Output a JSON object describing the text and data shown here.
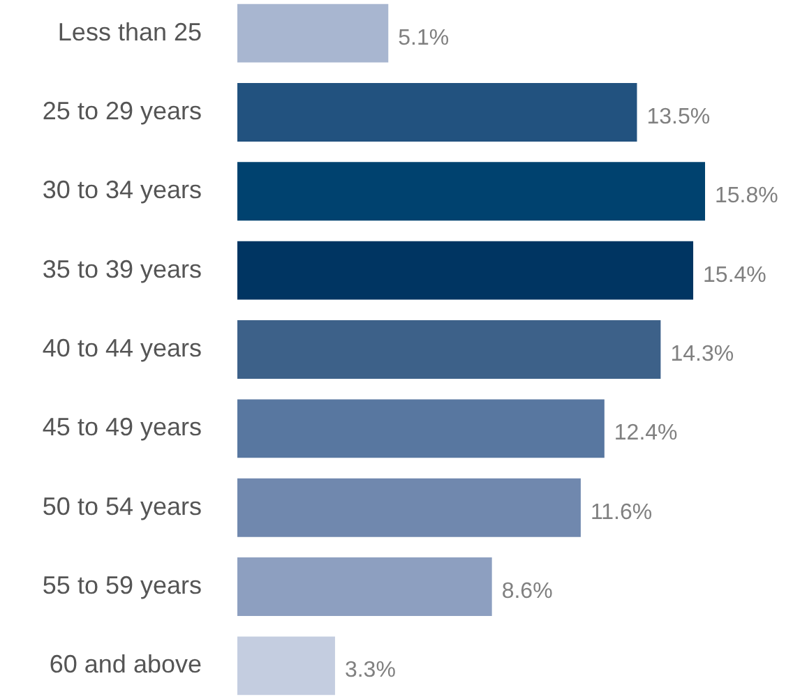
{
  "chart_data": {
    "type": "bar",
    "orientation": "horizontal",
    "categories": [
      "Less than 25",
      "25 to 29 years",
      "30 to 34 years",
      "35 to 39 years",
      "40 to 44 years",
      "45 to 49 years",
      "50 to 54 years",
      "55 to 59 years",
      "60 and above"
    ],
    "values": [
      5.1,
      13.5,
      15.8,
      15.4,
      14.3,
      12.4,
      11.6,
      8.6,
      3.3
    ],
    "value_labels": [
      "5.1%",
      "13.5%",
      "15.8%",
      "15.4%",
      "14.3%",
      "12.4%",
      "11.6%",
      "8.6%",
      "3.3%"
    ],
    "colors": [
      "#a8b6d0",
      "#22527f",
      "#00426f",
      "#003562",
      "#3d6189",
      "#5877a0",
      "#7088ae",
      "#8d9fc0",
      "#c4cde0"
    ]
  }
}
